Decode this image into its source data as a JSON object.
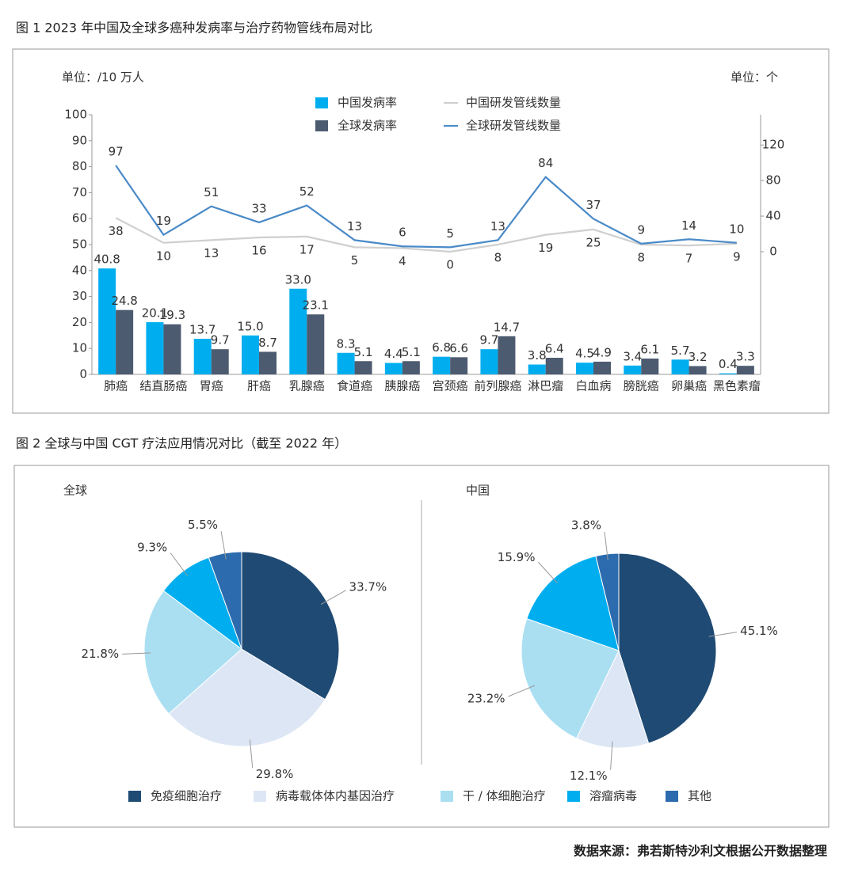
{
  "chart_data": [
    {
      "type": "bar_line",
      "title": "图 1   2023 年中国及全球多癌种发病率与治疗药物管线布局对比",
      "y_label": "单位：/10 万人",
      "y2_label": "单位：个",
      "categories": [
        "肺癌",
        "结直肠癌",
        "胃癌",
        "肝癌",
        "乳腺癌",
        "食道癌",
        "胰腺癌",
        "宫颈癌",
        "前列腺癌",
        "淋巴瘤",
        "白血病",
        "膀胱癌",
        "卵巢癌",
        "黑色素瘤"
      ],
      "series": [
        {
          "name": "中国发病率",
          "kind": "bar",
          "color": "#00aeef",
          "values": [
            40.8,
            20.1,
            13.7,
            15.0,
            33.0,
            8.3,
            4.4,
            6.8,
            9.7,
            3.8,
            4.5,
            3.4,
            5.7,
            0.4
          ],
          "value_labels": [
            "40.8",
            "20.1",
            "13.7",
            "15.0",
            "33.0",
            "8.3",
            "4.4",
            "6.8",
            "9.7",
            "3.8",
            "4.5",
            "3.4",
            "5.7",
            "0.4"
          ]
        },
        {
          "name": "全球发病率",
          "kind": "bar",
          "color": "#4d5b70",
          "values": [
            24.8,
            19.3,
            9.7,
            8.7,
            23.1,
            5.1,
            5.1,
            6.6,
            14.7,
            6.4,
            4.9,
            6.1,
            3.2,
            3.3
          ],
          "value_labels": [
            "24.8",
            "19.3",
            "9.7",
            "8.7",
            "23.1",
            "5.1",
            "5.1",
            "6.6",
            "14.7",
            "6.4",
            "4.9",
            "6.1",
            "3.2",
            "3.3"
          ]
        },
        {
          "name": "中国研发管线数量",
          "kind": "line",
          "axis": "y2",
          "color": "#cfcfcf",
          "values": [
            38,
            10,
            13,
            16,
            17,
            5,
            4,
            0,
            8,
            19,
            25,
            8,
            7,
            9
          ]
        },
        {
          "name": "全球研发管线数量",
          "kind": "line",
          "axis": "y2",
          "color": "#4a8ac8",
          "values": [
            97,
            19,
            51,
            33,
            52,
            13,
            6,
            5,
            13,
            84,
            37,
            9,
            14,
            10
          ]
        }
      ],
      "ylim": [
        0,
        100
      ],
      "yticks": [
        0,
        10,
        20,
        30,
        40,
        50,
        60,
        70,
        80,
        90,
        100
      ],
      "y2lim": [
        -138,
        154
      ],
      "y2ticks": [
        0,
        40,
        80,
        120
      ]
    },
    {
      "type": "pie",
      "title": "图 2   全球与中国 CGT 疗法应用情况对比（截至 2022 年）",
      "categories": [
        "免疫细胞治疗",
        "病毒载体体内基因治疗",
        "干 / 体细胞治疗",
        "溶瘤病毒",
        "其他"
      ],
      "colors": [
        "#1e4a73",
        "#dde6f4",
        "#aadff2",
        "#00aeef",
        "#2c6bad"
      ],
      "series": [
        {
          "name": "全球",
          "values": [
            33.7,
            29.8,
            21.8,
            9.3,
            5.5
          ],
          "value_labels": [
            "33.7%",
            "29.8%",
            "21.8%",
            "9.3%",
            "5.5%"
          ]
        },
        {
          "name": "中国",
          "values": [
            45.1,
            12.1,
            23.2,
            15.9,
            3.8
          ],
          "value_labels": [
            "45.1%",
            "12.1%",
            "23.2%",
            "15.9%",
            "3.8%"
          ]
        }
      ]
    }
  ],
  "source": "数据来源：弗若斯特沙利文根据公开数据整理"
}
